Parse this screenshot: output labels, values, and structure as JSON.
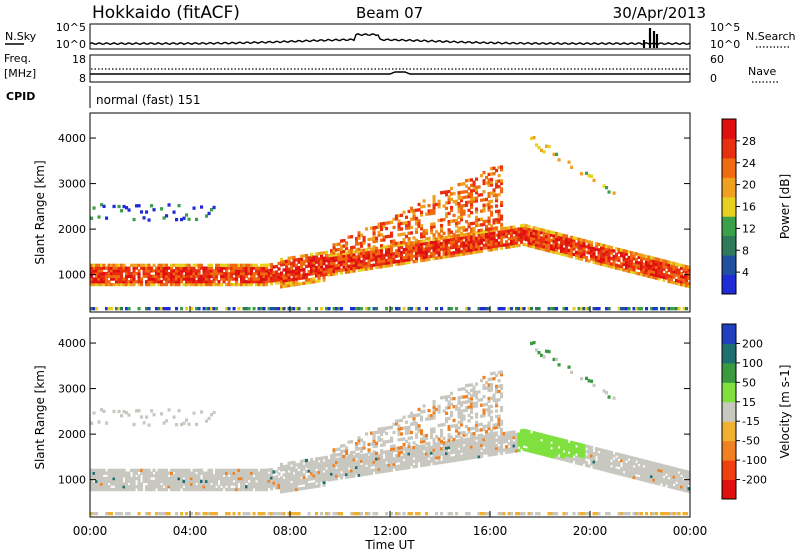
{
  "header": {
    "station": "Hokkaido (fitACF)",
    "beam": "Beam 07",
    "date": "30/Apr/2013"
  },
  "strip_labels": {
    "nsky": "N.Sky",
    "nsky_top": "10^5",
    "nsky_bottom": "10^0",
    "nsearch": "N.Search",
    "nsearch_top": "10^5",
    "nsearch_bottom": "10^0",
    "freq": "Freq.",
    "freq_unit": "[MHz]",
    "freq_top": "18",
    "freq_bottom": "8",
    "nave": "Nave",
    "nave_top": "60",
    "nave_bottom": "0",
    "cpid": "CPID",
    "cpid_value": "normal (fast) 151"
  },
  "colors": {
    "power": [
      "#1f2bd6",
      "#1f4fa0",
      "#2e7a5a",
      "#3aa04a",
      "#e8d020",
      "#f0a020",
      "#f06a10",
      "#e83010",
      "#e01010"
    ],
    "velocity": [
      "#2040c0",
      "#1f6f70",
      "#3b9a40",
      "#7fe040",
      "#c8c8c0",
      "#f0b030",
      "#f08020",
      "#f04010",
      "#e01010"
    ]
  },
  "chart_data": [
    {
      "type": "heatmap",
      "parameter": "power",
      "ylabel": "Slant Range [km]",
      "yticks": [
        "1000",
        "2000",
        "3000",
        "4000"
      ],
      "ylim": [
        180,
        4550
      ],
      "xlim_hours": [
        0,
        24
      ],
      "colorbar_label": "Power [dB]",
      "colorbar_ticks": [
        "4",
        "8",
        "12",
        "16",
        "20",
        "24",
        "28"
      ],
      "colorbar_range": [
        0,
        32
      ]
    },
    {
      "type": "heatmap",
      "parameter": "velocity",
      "ylabel": "Slant Range [km]",
      "yticks": [
        "1000",
        "2000",
        "3000",
        "4000"
      ],
      "ylim": [
        180,
        4550
      ],
      "xlim_hours": [
        0,
        24
      ],
      "colorbar_label": "Velocity [m s-1]",
      "colorbar_ticks": [
        "200",
        "100",
        "50",
        "15",
        "-15",
        "-50",
        "-100",
        "-200"
      ],
      "colorbar_range": [
        -300,
        300
      ]
    }
  ],
  "xaxis": {
    "ticks": [
      "00:00",
      "04:00",
      "08:00",
      "12:00",
      "16:00",
      "20:00",
      "00:00"
    ],
    "label": "Time UT"
  }
}
